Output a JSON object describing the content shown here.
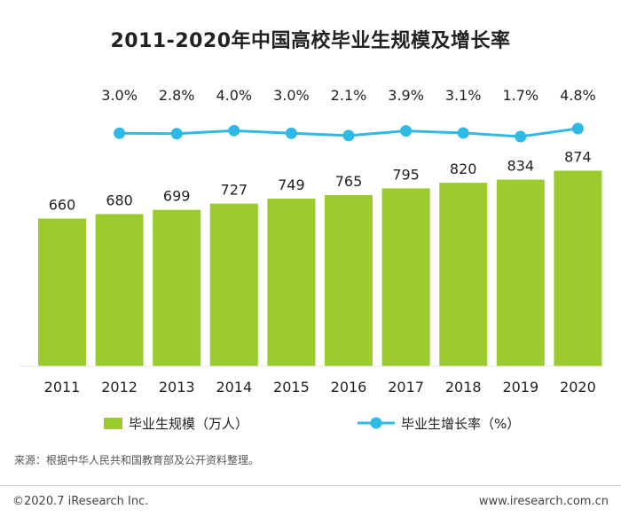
{
  "chart_data": {
    "type": "bar+line",
    "title": "2011-2020年中国高校毕业生规模及增长率",
    "categories": [
      "2011",
      "2012",
      "2013",
      "2014",
      "2015",
      "2016",
      "2017",
      "2018",
      "2019",
      "2020"
    ],
    "series": [
      {
        "name": "毕业生规模（万人）",
        "type": "bar",
        "values": [
          660,
          680,
          699,
          727,
          749,
          765,
          795,
          820,
          834,
          874
        ],
        "labels": [
          "660",
          "680",
          "699",
          "727",
          "749",
          "765",
          "795",
          "820",
          "834",
          "874"
        ],
        "color": "#9BCB2C"
      },
      {
        "name": "毕业生增长率（%）",
        "type": "line",
        "values": [
          3.0,
          2.8,
          4.0,
          3.0,
          2.1,
          3.9,
          3.1,
          1.7,
          4.8
        ],
        "x": [
          "2012",
          "2013",
          "2014",
          "2015",
          "2016",
          "2017",
          "2018",
          "2019",
          "2020"
        ],
        "labels": [
          "3.0%",
          "2.8%",
          "4.0%",
          "3.0%",
          "2.1%",
          "3.9%",
          "3.1%",
          "1.7%",
          "4.8%"
        ],
        "color": "#2EB9E6"
      }
    ],
    "legend_position": "bottom",
    "grid": false
  },
  "source_note": "来源：根据中华人民共和国教育部及公开资料整理。",
  "copyright": "©2020.7 iResearch Inc.",
  "website": "www.iresearch.com.cn"
}
